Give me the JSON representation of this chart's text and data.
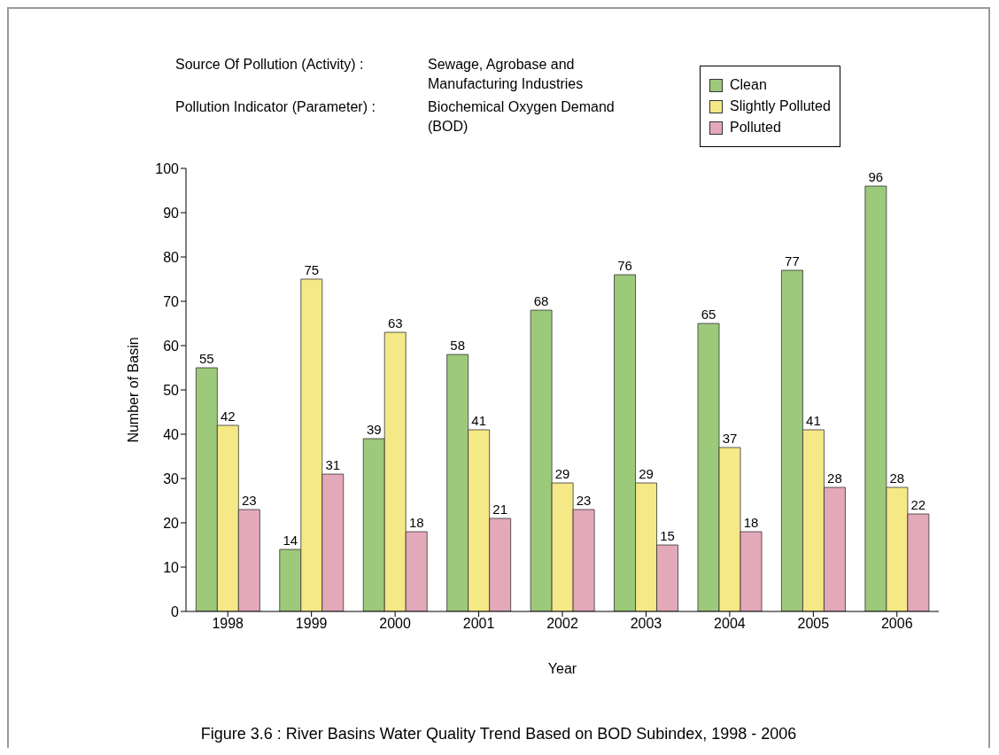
{
  "chart_data": {
    "type": "bar",
    "title": "Figure 3.6 : River Basins Water Quality Trend Based on BOD Subindex, 1998 - 2006",
    "annotations": [
      "Source Of Pollution (Activity) :",
      "Sewage, Agrobase and Manufacturing Industries",
      "Pollution Indicator (Parameter) :",
      "Biochemical Oxygen Demand (BOD)"
    ],
    "xlabel": "Year",
    "ylabel": "Number of Basin",
    "categories": [
      "1998",
      "1999",
      "2000",
      "2001",
      "2002",
      "2003",
      "2004",
      "2005",
      "2006"
    ],
    "series": [
      {
        "name": "Clean",
        "color": "#9dc97a",
        "values": [
          55,
          14,
          39,
          58,
          68,
          76,
          65,
          77,
          96
        ]
      },
      {
        "name": "Slightly Polluted",
        "color": "#f5e886",
        "values": [
          42,
          75,
          63,
          41,
          29,
          29,
          37,
          41,
          28
        ]
      },
      {
        "name": "Polluted",
        "color": "#e3a9b9",
        "values": [
          23,
          31,
          18,
          21,
          23,
          15,
          18,
          28,
          22
        ]
      }
    ],
    "ylim": [
      0,
      100
    ],
    "yticks": [
      0,
      10,
      20,
      30,
      40,
      50,
      60,
      70,
      80,
      90,
      100
    ],
    "grid": false,
    "legend": "top right",
    "data_labels": true
  }
}
